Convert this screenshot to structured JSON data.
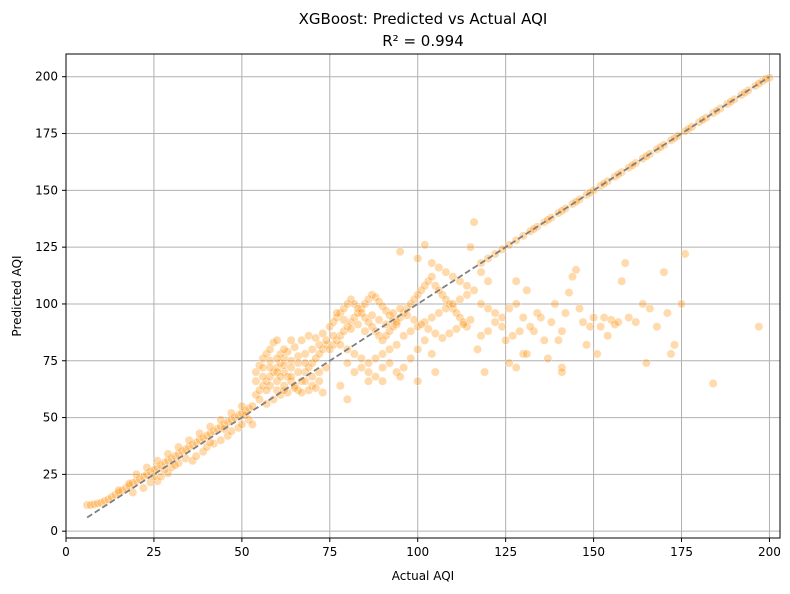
{
  "chart_data": {
    "type": "scatter",
    "title": "XGBoost: Predicted vs Actual AQI",
    "subtitle": "R² = 0.994",
    "xlabel": "Actual AQI",
    "ylabel": "Predicted AQI",
    "xlim": [
      0,
      203
    ],
    "ylim": [
      -3,
      210
    ],
    "xticks": [
      0,
      25,
      50,
      75,
      100,
      125,
      150,
      175,
      200
    ],
    "yticks": [
      0,
      25,
      50,
      75,
      100,
      125,
      150,
      175,
      200
    ],
    "grid": true,
    "reference_line": {
      "style": "dashed",
      "from": [
        6,
        6
      ],
      "to": [
        200,
        200
      ]
    },
    "colors": {
      "points": "#ff8c00",
      "reference_line": "#808080",
      "grid": "#b0b0b0"
    },
    "points": [
      [
        6,
        11.5
      ],
      [
        7,
        11.5
      ],
      [
        8,
        11.8
      ],
      [
        9,
        12.2
      ],
      [
        10,
        12.5
      ],
      [
        11,
        13.3
      ],
      [
        12,
        14
      ],
      [
        13,
        15
      ],
      [
        14,
        16
      ],
      [
        15,
        17
      ],
      [
        16,
        17.8
      ],
      [
        17,
        19
      ],
      [
        18,
        20
      ],
      [
        19,
        21.2
      ],
      [
        20,
        22
      ],
      [
        21,
        23
      ],
      [
        22,
        24
      ],
      [
        23,
        25
      ],
      [
        24,
        26.2
      ],
      [
        25,
        27
      ],
      [
        26,
        28
      ],
      [
        27,
        29
      ],
      [
        28,
        30.2
      ],
      [
        29,
        31
      ],
      [
        30,
        32
      ],
      [
        31,
        33
      ],
      [
        32,
        34
      ],
      [
        33,
        35.2
      ],
      [
        34,
        36
      ],
      [
        35,
        37
      ],
      [
        36,
        38
      ],
      [
        37,
        39
      ],
      [
        38,
        40.2
      ],
      [
        39,
        41
      ],
      [
        40,
        42
      ],
      [
        41,
        43
      ],
      [
        42,
        44
      ],
      [
        43,
        45
      ],
      [
        44,
        46
      ],
      [
        45,
        47
      ],
      [
        46,
        48
      ],
      [
        47,
        49
      ],
      [
        48,
        50
      ],
      [
        49,
        51
      ],
      [
        50,
        52
      ],
      [
        51,
        53
      ],
      [
        52,
        54
      ],
      [
        53,
        55
      ],
      [
        19,
        17
      ],
      [
        22,
        19
      ],
      [
        24,
        21.5
      ],
      [
        26,
        22
      ],
      [
        27,
        24
      ],
      [
        29,
        25.5
      ],
      [
        30,
        28
      ],
      [
        32,
        30
      ],
      [
        34,
        32
      ],
      [
        36,
        31
      ],
      [
        37,
        33
      ],
      [
        39,
        35
      ],
      [
        40,
        37
      ],
      [
        42,
        38.5
      ],
      [
        44,
        40
      ],
      [
        46,
        42
      ],
      [
        47,
        44
      ],
      [
        49,
        45.5
      ],
      [
        50,
        47
      ],
      [
        52,
        49
      ],
      [
        53,
        47
      ],
      [
        51,
        51
      ],
      [
        20,
        25
      ],
      [
        23,
        28
      ],
      [
        26,
        31
      ],
      [
        29,
        34
      ],
      [
        32,
        37
      ],
      [
        35,
        40
      ],
      [
        38,
        43
      ],
      [
        41,
        46
      ],
      [
        44,
        49
      ],
      [
        47,
        52
      ],
      [
        50,
        55
      ],
      [
        15,
        18
      ],
      [
        18,
        21
      ],
      [
        25,
        24
      ],
      [
        31,
        29
      ],
      [
        28,
        27
      ],
      [
        41,
        39
      ],
      [
        45,
        45
      ],
      [
        54,
        60
      ],
      [
        55,
        62
      ],
      [
        56,
        64
      ],
      [
        57,
        66
      ],
      [
        58,
        68
      ],
      [
        59,
        70
      ],
      [
        60,
        72
      ],
      [
        61,
        74
      ],
      [
        62,
        76
      ],
      [
        54,
        70
      ],
      [
        55,
        73
      ],
      [
        56,
        76
      ],
      [
        57,
        78
      ],
      [
        58,
        80
      ],
      [
        59,
        83
      ],
      [
        60,
        84
      ],
      [
        61,
        78
      ],
      [
        62,
        70
      ],
      [
        63,
        68
      ],
      [
        64,
        66
      ],
      [
        65,
        64
      ],
      [
        66,
        62
      ],
      [
        67,
        66
      ],
      [
        68,
        70
      ],
      [
        69,
        72
      ],
      [
        70,
        74
      ],
      [
        71,
        76
      ],
      [
        72,
        78
      ],
      [
        73,
        80
      ],
      [
        74,
        82
      ],
      [
        54,
        66
      ],
      [
        56,
        68
      ],
      [
        58,
        64
      ],
      [
        60,
        62
      ],
      [
        62,
        64
      ],
      [
        64,
        68
      ],
      [
        66,
        70
      ],
      [
        68,
        66
      ],
      [
        70,
        64
      ],
      [
        72,
        66
      ],
      [
        55,
        58
      ],
      [
        57,
        56
      ],
      [
        59,
        58
      ],
      [
        61,
        60
      ],
      [
        63,
        61
      ],
      [
        65,
        63
      ],
      [
        67,
        61
      ],
      [
        69,
        62
      ],
      [
        71,
        63
      ],
      [
        73,
        61
      ],
      [
        58,
        75
      ],
      [
        60,
        70
      ],
      [
        62,
        73
      ],
      [
        64,
        75
      ],
      [
        66,
        77
      ],
      [
        68,
        78
      ],
      [
        70,
        80
      ],
      [
        72,
        82
      ],
      [
        74,
        84
      ],
      [
        63,
        79
      ],
      [
        65,
        81
      ],
      [
        67,
        84
      ],
      [
        69,
        86
      ],
      [
        71,
        85
      ],
      [
        73,
        87
      ],
      [
        60,
        66
      ],
      [
        61,
        68
      ],
      [
        62,
        62
      ],
      [
        64,
        72
      ],
      [
        66,
        74
      ],
      [
        68,
        74
      ],
      [
        70,
        68
      ],
      [
        72,
        70
      ],
      [
        74,
        72
      ],
      [
        56,
        72
      ],
      [
        58,
        72
      ],
      [
        60,
        76
      ],
      [
        62,
        80
      ],
      [
        64,
        84
      ],
      [
        57,
        62
      ],
      [
        75,
        80
      ],
      [
        76,
        82
      ],
      [
        77,
        84
      ],
      [
        78,
        86
      ],
      [
        79,
        88
      ],
      [
        80,
        90
      ],
      [
        81,
        92
      ],
      [
        82,
        94
      ],
      [
        83,
        96
      ],
      [
        84,
        98
      ],
      [
        85,
        100
      ],
      [
        86,
        102
      ],
      [
        87,
        104
      ],
      [
        88,
        103
      ],
      [
        89,
        101
      ],
      [
        90,
        99
      ],
      [
        91,
        97
      ],
      [
        92,
        95
      ],
      [
        93,
        93
      ],
      [
        94,
        91
      ],
      [
        75,
        90
      ],
      [
        76,
        92
      ],
      [
        77,
        94
      ],
      [
        78,
        96
      ],
      [
        79,
        98
      ],
      [
        80,
        100
      ],
      [
        81,
        102
      ],
      [
        82,
        100
      ],
      [
        83,
        98
      ],
      [
        84,
        96
      ],
      [
        85,
        94
      ],
      [
        86,
        92
      ],
      [
        87,
        90
      ],
      [
        88,
        88
      ],
      [
        89,
        86
      ],
      [
        90,
        84
      ],
      [
        91,
        86
      ],
      [
        92,
        88
      ],
      [
        93,
        90
      ],
      [
        94,
        92
      ],
      [
        95,
        94
      ],
      [
        96,
        96
      ],
      [
        97,
        98
      ],
      [
        98,
        100
      ],
      [
        99,
        102
      ],
      [
        100,
        104
      ],
      [
        101,
        106
      ],
      [
        102,
        108
      ],
      [
        103,
        110
      ],
      [
        104,
        112
      ],
      [
        105,
        108
      ],
      [
        106,
        106
      ],
      [
        107,
        104
      ],
      [
        108,
        102
      ],
      [
        109,
        100
      ],
      [
        110,
        98
      ],
      [
        111,
        96
      ],
      [
        112,
        94
      ],
      [
        113,
        92
      ],
      [
        114,
        90
      ],
      [
        76,
        86
      ],
      [
        78,
        82
      ],
      [
        80,
        80
      ],
      [
        82,
        78
      ],
      [
        84,
        76
      ],
      [
        86,
        74
      ],
      [
        88,
        76
      ],
      [
        90,
        78
      ],
      [
        92,
        80
      ],
      [
        94,
        82
      ],
      [
        96,
        86
      ],
      [
        98,
        88
      ],
      [
        100,
        90
      ],
      [
        102,
        92
      ],
      [
        104,
        94
      ],
      [
        106,
        96
      ],
      [
        108,
        98
      ],
      [
        110,
        100
      ],
      [
        112,
        102
      ],
      [
        114,
        104
      ],
      [
        77,
        96
      ],
      [
        79,
        93
      ],
      [
        81,
        89
      ],
      [
        83,
        91
      ],
      [
        85,
        88
      ],
      [
        87,
        95
      ],
      [
        89,
        93
      ],
      [
        91,
        91
      ],
      [
        93,
        96
      ],
      [
        95,
        98
      ],
      [
        97,
        95
      ],
      [
        99,
        93
      ],
      [
        101,
        91
      ],
      [
        103,
        89
      ],
      [
        105,
        87
      ],
      [
        107,
        85
      ],
      [
        109,
        87
      ],
      [
        111,
        89
      ],
      [
        113,
        91
      ],
      [
        115,
        93
      ],
      [
        86,
        70
      ],
      [
        88,
        68
      ],
      [
        90,
        72
      ],
      [
        92,
        74
      ],
      [
        94,
        70
      ],
      [
        96,
        72
      ],
      [
        98,
        76
      ],
      [
        100,
        80
      ],
      [
        102,
        84
      ],
      [
        104,
        78
      ],
      [
        80,
        74
      ],
      [
        82,
        70
      ],
      [
        84,
        72
      ],
      [
        86,
        66
      ],
      [
        90,
        66
      ],
      [
        95,
        68
      ],
      [
        100,
        66
      ],
      [
        105,
        70
      ],
      [
        78,
        64
      ],
      [
        80,
        58
      ],
      [
        95,
        123
      ],
      [
        100,
        120
      ],
      [
        102,
        126
      ],
      [
        104,
        118
      ],
      [
        106,
        116
      ],
      [
        108,
        114
      ],
      [
        110,
        112
      ],
      [
        112,
        110
      ],
      [
        114,
        108
      ],
      [
        116,
        106
      ],
      [
        116,
        136
      ],
      [
        115,
        125
      ],
      [
        118,
        114
      ],
      [
        120,
        110
      ],
      [
        118,
        100
      ],
      [
        120,
        98
      ],
      [
        122,
        96
      ],
      [
        124,
        94
      ],
      [
        118,
        86
      ],
      [
        117,
        80
      ],
      [
        119,
        70
      ],
      [
        120,
        88
      ],
      [
        122,
        92
      ],
      [
        124,
        90
      ],
      [
        126,
        98
      ],
      [
        127,
        86
      ],
      [
        128,
        100
      ],
      [
        129,
        88
      ],
      [
        130,
        94
      ],
      [
        131,
        106
      ],
      [
        126,
        74
      ],
      [
        128,
        72
      ],
      [
        130,
        78
      ],
      [
        131,
        78
      ],
      [
        133,
        88
      ],
      [
        134,
        96
      ],
      [
        135,
        94
      ],
      [
        136,
        84
      ],
      [
        138,
        92
      ],
      [
        139,
        100
      ],
      [
        140,
        84
      ],
      [
        141,
        88
      ],
      [
        141,
        72
      ],
      [
        141,
        70
      ],
      [
        142,
        96
      ],
      [
        143,
        105
      ],
      [
        144,
        112
      ],
      [
        145,
        115
      ],
      [
        146,
        98
      ],
      [
        148,
        82
      ],
      [
        149,
        90
      ],
      [
        150,
        94
      ],
      [
        151,
        78
      ],
      [
        152,
        90
      ],
      [
        153,
        94
      ],
      [
        154,
        86
      ],
      [
        155,
        93
      ],
      [
        156,
        91
      ],
      [
        157,
        92
      ],
      [
        158,
        110
      ],
      [
        159,
        118
      ],
      [
        160,
        94
      ],
      [
        162,
        92
      ],
      [
        164,
        100
      ],
      [
        165,
        74
      ],
      [
        166,
        98
      ],
      [
        168,
        90
      ],
      [
        170,
        114
      ],
      [
        171,
        96
      ],
      [
        172,
        78
      ],
      [
        173,
        82
      ],
      [
        175,
        100
      ],
      [
        176,
        122
      ],
      [
        184,
        65
      ],
      [
        197,
        90
      ],
      [
        128,
        110
      ],
      [
        125,
        84
      ],
      [
        132,
        90
      ],
      [
        137,
        76
      ],
      [
        147,
        92
      ],
      [
        118,
        118
      ],
      [
        120,
        120
      ],
      [
        122,
        122
      ],
      [
        124,
        124
      ],
      [
        126,
        126
      ],
      [
        128,
        128
      ],
      [
        130,
        130
      ],
      [
        132,
        132
      ],
      [
        134,
        134
      ],
      [
        136,
        136
      ],
      [
        138,
        138
      ],
      [
        140,
        140
      ],
      [
        142,
        142
      ],
      [
        144,
        144
      ],
      [
        146,
        146
      ],
      [
        148,
        148
      ],
      [
        150,
        150
      ],
      [
        152,
        152
      ],
      [
        154,
        154
      ],
      [
        156,
        156
      ],
      [
        158,
        158
      ],
      [
        160,
        160
      ],
      [
        162,
        162
      ],
      [
        164,
        164
      ],
      [
        166,
        166
      ],
      [
        168,
        168
      ],
      [
        170,
        170
      ],
      [
        172,
        172
      ],
      [
        174,
        174
      ],
      [
        176,
        176
      ],
      [
        178,
        178
      ],
      [
        180,
        180
      ],
      [
        182,
        182
      ],
      [
        184,
        184
      ],
      [
        186,
        186
      ],
      [
        188,
        188
      ],
      [
        190,
        190
      ],
      [
        192,
        192
      ],
      [
        194,
        194
      ],
      [
        196,
        196
      ],
      [
        198,
        198
      ],
      [
        200,
        199.5
      ],
      [
        199,
        199
      ],
      [
        197,
        197
      ],
      [
        193,
        193
      ],
      [
        189,
        189
      ],
      [
        185,
        185
      ],
      [
        181,
        181
      ],
      [
        177,
        177
      ],
      [
        173,
        173
      ],
      [
        169,
        169
      ],
      [
        165,
        165
      ],
      [
        161,
        161
      ],
      [
        157,
        157
      ],
      [
        153,
        153
      ],
      [
        149,
        149
      ],
      [
        145,
        145
      ],
      [
        141,
        141
      ],
      [
        137,
        137
      ],
      [
        133,
        133
      ]
    ]
  }
}
